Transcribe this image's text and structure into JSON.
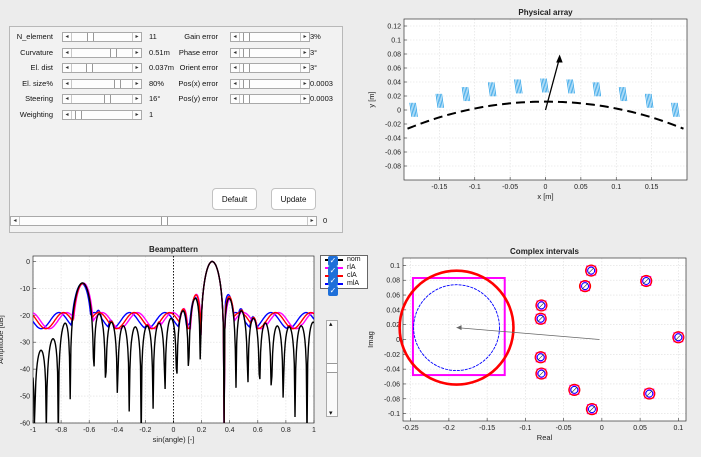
{
  "controls": {
    "left": [
      {
        "label": "N_element",
        "value": "11",
        "thumb": 0.28
      },
      {
        "label": "Curvature",
        "value": "0.51m",
        "thumb": 0.7
      },
      {
        "label": "El. dist",
        "value": "0.037m",
        "thumb": 0.25
      },
      {
        "label": "El. size%",
        "value": "80%",
        "thumb": 0.78
      },
      {
        "label": "Steering",
        "value": "16°",
        "thumb": 0.6
      },
      {
        "label": "Weighting",
        "value": "1",
        "thumb": 0.05
      }
    ],
    "right": [
      {
        "label": "Gain error",
        "value": "3%",
        "thumb": 0.05
      },
      {
        "label": "Phase error",
        "value": "3°",
        "thumb": 0.05
      },
      {
        "label": "Orient error",
        "value": "3°",
        "thumb": 0.05
      },
      {
        "label": "Pos(x) error",
        "value": "0.0003",
        "thumb": 0.05
      },
      {
        "label": "Pos(y) error",
        "value": "0.0003",
        "thumb": 0.05
      }
    ],
    "default_label": "Default",
    "update_label": "Update",
    "bottom_slider_value": "0",
    "bottom_slider_thumb": 0.5
  },
  "arr_left": "◂",
  "arr_right": "▸",
  "arr_up": "▴",
  "arr_down": "▾",
  "checkmark": "✓",
  "colors": {
    "nom": "#000000",
    "rlA": "#ff00ff",
    "clA": "#ff0000",
    "mlA": "#0000ff"
  },
  "chart_data": [
    {
      "type": "scatter",
      "title": "Physical array",
      "xlabel": "x [m]",
      "ylabel": "y [m]",
      "xlim": [
        -0.2,
        0.2
      ],
      "ylim": [
        -0.1,
        0.13
      ],
      "xticks": [
        "-0.15",
        "-0.1",
        "-0.05",
        "0",
        "0.05",
        "0.1",
        "0.15"
      ],
      "xtick_vals": [
        -0.15,
        -0.1,
        -0.05,
        0,
        0.05,
        0.1,
        0.15
      ],
      "yticks": [
        "0.12",
        "0.1",
        "0.08",
        "0.06",
        "0.04",
        "0.02",
        "0",
        "-0.02",
        "-0.04",
        "-0.06",
        "-0.08"
      ],
      "ytick_vals": [
        0.12,
        0.1,
        0.08,
        0.06,
        0.04,
        0.02,
        0,
        -0.02,
        -0.04,
        -0.06,
        -0.08
      ],
      "elements_x": [
        -0.185,
        -0.148,
        -0.111,
        -0.074,
        -0.037,
        0,
        0.037,
        0.074,
        0.111,
        0.148,
        0.185
      ],
      "steer_vector": {
        "x0": 0,
        "y0": 0,
        "x1": 0.02,
        "y1": 0.075
      },
      "grid": true
    },
    {
      "type": "line",
      "title": "Beampattern",
      "xlabel": "sin(angle) [-]",
      "ylabel": "Amplitude [dB]",
      "xlim": [
        -1,
        1
      ],
      "ylim": [
        -60,
        2
      ],
      "xticks": [
        "-1",
        "-0.8",
        "-0.6",
        "-0.4",
        "-0.2",
        "0",
        "0.2",
        "0.4",
        "0.6",
        "0.8",
        "1"
      ],
      "xtick_vals": [
        -1,
        -0.8,
        -0.6,
        -0.4,
        -0.2,
        0,
        0.2,
        0.4,
        0.6,
        0.8,
        1
      ],
      "yticks": [
        "0",
        "-10",
        "-20",
        "-30",
        "-40",
        "-50",
        "-60"
      ],
      "ytick_vals": [
        0,
        -10,
        -20,
        -30,
        -40,
        -50,
        -60
      ],
      "legend": [
        "nom",
        "rlA",
        "clA",
        "mlA"
      ],
      "main_lobe_peak_x": 0.28,
      "grid": true
    },
    {
      "type": "scatter",
      "title": "Complex intervals",
      "xlabel": "Real",
      "ylabel": "Imag",
      "xlim": [
        -0.26,
        0.11
      ],
      "ylim": [
        -0.11,
        0.11
      ],
      "xticks": [
        "-0.25",
        "-0.2",
        "-0.15",
        "-0.1",
        "-0.05",
        "0",
        "0.05",
        "0.1"
      ],
      "xtick_vals": [
        -0.25,
        -0.2,
        -0.15,
        -0.1,
        -0.05,
        0,
        0.05,
        0.1
      ],
      "yticks": [
        "0.1",
        "0.08",
        "0.06",
        "0.04",
        "0.02",
        "0",
        "-0.02",
        "-0.04",
        "-0.06",
        "-0.08",
        "-0.1"
      ],
      "ytick_vals": [
        0.1,
        0.08,
        0.06,
        0.04,
        0.02,
        0,
        -0.02,
        -0.04,
        -0.06,
        -0.08,
        -0.1
      ],
      "points": [
        {
          "x": -0.014,
          "y": 0.093
        },
        {
          "x": 0.058,
          "y": 0.079
        },
        {
          "x": -0.022,
          "y": 0.072
        },
        {
          "x": -0.079,
          "y": 0.046
        },
        {
          "x": -0.08,
          "y": 0.028
        },
        {
          "x": 0.1,
          "y": 0.003
        },
        {
          "x": -0.08,
          "y": -0.024
        },
        {
          "x": -0.079,
          "y": -0.046
        },
        {
          "x": -0.036,
          "y": -0.068
        },
        {
          "x": 0.062,
          "y": -0.073
        },
        {
          "x": -0.013,
          "y": -0.094
        }
      ],
      "sum": {
        "cx": -0.19,
        "cy": 0.016,
        "r": 0.061
      },
      "box": {
        "x0": -0.247,
        "x1": -0.127,
        "y0": -0.048,
        "y1": 0.083
      },
      "arrow": {
        "x0": -0.003,
        "y0": -0.0,
        "x1": -0.19,
        "y1": 0.016
      },
      "grid": true
    }
  ]
}
